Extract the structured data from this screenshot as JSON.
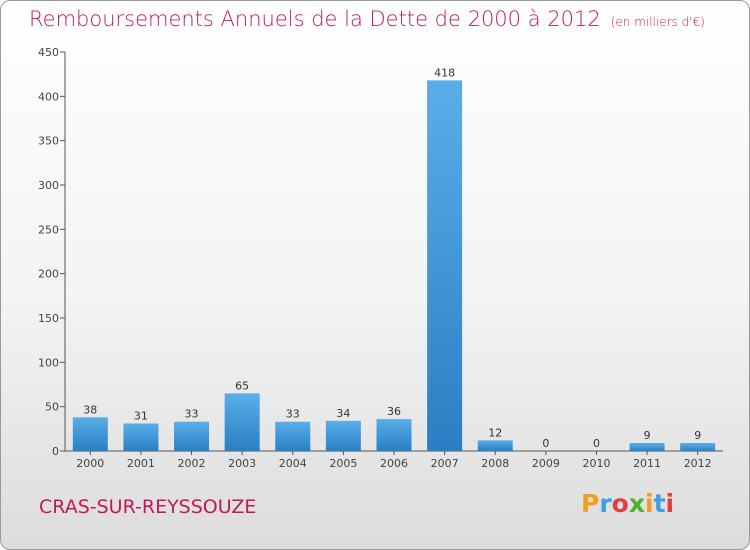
{
  "title": "Remboursements Annuels de la Dette de 2000 à 2012",
  "unit": "(en milliers d'€)",
  "town": "CRAS-SUR-REYSSOUZE",
  "logo": "Proxiti",
  "colors": {
    "title": "#c2185b",
    "bar_light": "#5aaee8",
    "bar_dark": "#2a7fc4",
    "logo": [
      "#f0a020",
      "#3aa0e0",
      "#e04040",
      "#50b030",
      "#f0a020",
      "#3aa0e0",
      "#e04040"
    ]
  },
  "chart_data": {
    "type": "bar",
    "title": "Remboursements Annuels de la Dette de 2000 à 2012",
    "subtitle": "(en milliers d'€)",
    "categories": [
      "2000",
      "2001",
      "2002",
      "2003",
      "2004",
      "2005",
      "2006",
      "2007",
      "2008",
      "2009",
      "2010",
      "2011",
      "2012"
    ],
    "values": [
      38,
      31,
      33,
      65,
      33,
      34,
      36,
      418,
      12,
      0,
      0,
      9,
      9
    ],
    "value_labels": [
      "38",
      "31",
      "33",
      "65",
      "33",
      "34",
      "36",
      "418",
      "12",
      "0",
      "0",
      "9",
      "9"
    ],
    "yticks": [
      "0",
      "50",
      "100",
      "150",
      "200",
      "250",
      "300",
      "350",
      "400",
      "450"
    ],
    "ylim": [
      0,
      450
    ],
    "grid": false,
    "legend": "none"
  }
}
